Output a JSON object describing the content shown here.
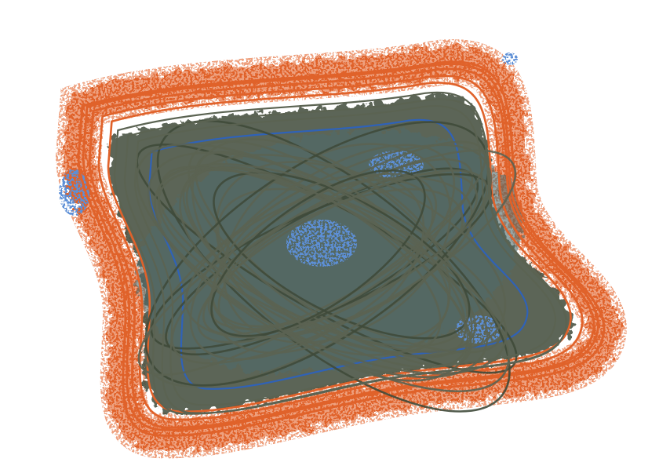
{
  "artwork": {
    "background": "#ffffff",
    "palette": {
      "orange": "#e0622a",
      "orange_light": "#eea07e",
      "blue": "#2f62b8",
      "blue_light": "#5d8fd6",
      "olive": "#5b6352",
      "olive_dark": "#3f4a3a",
      "teal": "#4e6b6a",
      "brown": "#7a5a45"
    }
  }
}
